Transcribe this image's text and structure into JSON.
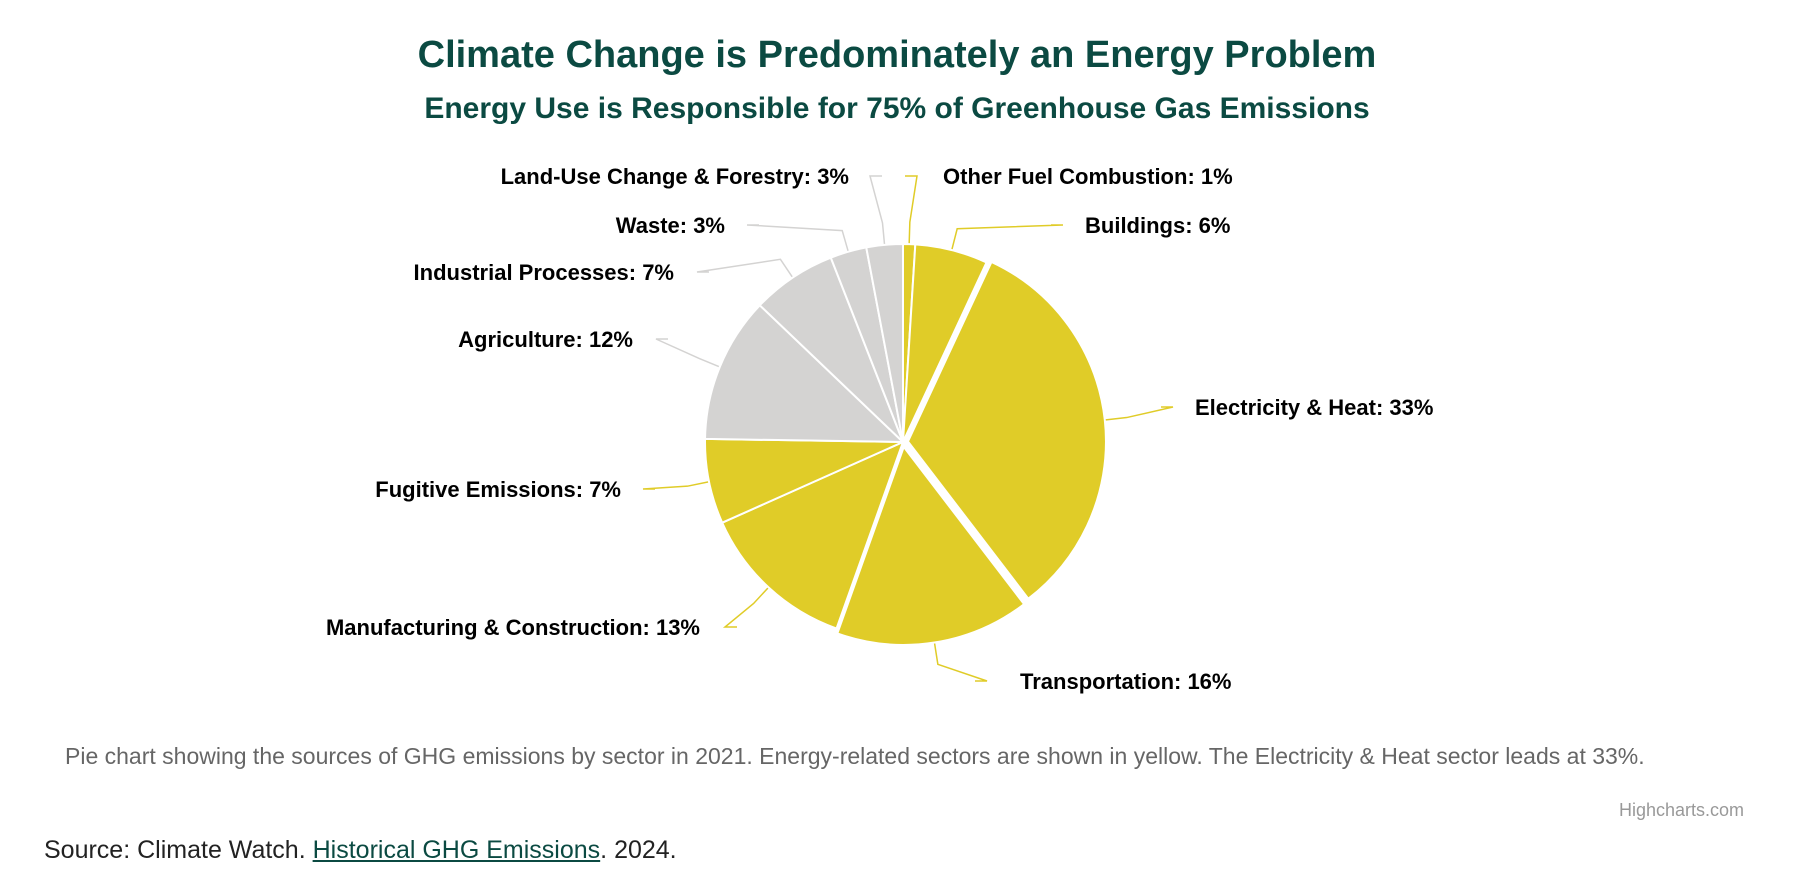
{
  "chart_data": {
    "type": "pie",
    "title": "Climate Change is Predominately an Energy Problem",
    "subtitle": "Energy Use is Responsible for 75% of Greenhouse Gas Emissions",
    "slices": [
      {
        "name": "Other Fuel Combustion",
        "value": 1,
        "color": "#e0cc28",
        "label": "Other Fuel Combustion: 1%"
      },
      {
        "name": "Buildings",
        "value": 6,
        "color": "#e0cc28",
        "label": "Buildings: 6%"
      },
      {
        "name": "Electricity & Heat",
        "value": 33,
        "color": "#e0cc28",
        "label": "Electricity & Heat: 33%"
      },
      {
        "name": "Transportation",
        "value": 16,
        "color": "#e0cc28",
        "label": "Transportation: 16%"
      },
      {
        "name": "Manufacturing & Construction",
        "value": 13,
        "color": "#e0cc28",
        "label": "Manufacturing & Construction: 13%"
      },
      {
        "name": "Fugitive Emissions",
        "value": 7,
        "color": "#e0cc28",
        "label": "Fugitive Emissions: 7%"
      },
      {
        "name": "Agriculture",
        "value": 12,
        "color": "#d4d3d2",
        "label": "Agriculture: 12%"
      },
      {
        "name": "Industrial Processes",
        "value": 7,
        "color": "#d4d3d2",
        "label": "Industrial Processes: 7%"
      },
      {
        "name": "Waste",
        "value": 3,
        "color": "#d4d3d2",
        "label": "Waste: 3%"
      },
      {
        "name": "Land-Use Change & Forestry",
        "value": 3,
        "color": "#d4d3d2",
        "label": "Land-Use Change & Forestry: 3%"
      }
    ],
    "energy_color": "#e0cc28",
    "other_color": "#d4d3d2",
    "legend": "none"
  },
  "description": "Pie chart showing the sources of GHG emissions by sector in 2021. Energy-related sectors are shown in yellow. The Electricity & Heat sector leads at 33%.",
  "credits": "Highcharts.com",
  "source": {
    "prefix": "Source: Climate Watch. ",
    "link_text": "Historical GHG Emissions",
    "suffix": ". 2024."
  }
}
